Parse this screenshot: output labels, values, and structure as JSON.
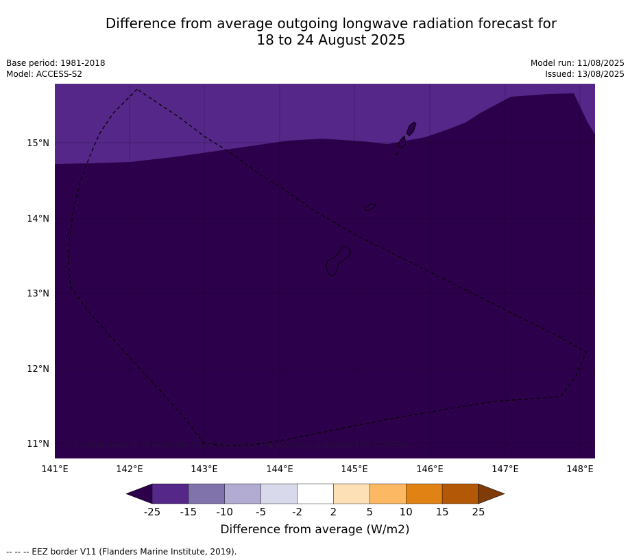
{
  "title_line1": "Difference from average outgoing longwave radiation forecast for",
  "title_line2": "18 to 24 August 2025",
  "base_period": "Base period: 1981-2018",
  "model": "Model: ACCESS-S2",
  "model_run": "Model run: 11/08/2025",
  "issued": "Issued: 13/08/2025",
  "copyright": "© Commonwealth of Australia 2025, Bureau of Meteorology, supported by COSPPac",
  "map": {
    "lon_labels": [
      "141°E",
      "142°E",
      "143°E",
      "144°E",
      "145°E",
      "146°E",
      "147°E",
      "148°E"
    ],
    "lat_labels": [
      "15°N",
      "14°N",
      "13°N",
      "12°N",
      "11°N"
    ],
    "colors": {
      "below_25": "#2d004b",
      "band_25_15": "#542788",
      "dashed_border": "#000000"
    }
  },
  "colorbar": {
    "label": "Difference from average (W/m2)",
    "ticks": [
      "-25",
      "-15",
      "-10",
      "-5",
      "-2",
      "2",
      "5",
      "10",
      "15",
      "25"
    ],
    "colors": [
      "#2d004b",
      "#542788",
      "#8073ac",
      "#b2abd2",
      "#d8daeb",
      "#ffffff",
      "#fee0b6",
      "#fdb863",
      "#e08214",
      "#b35806",
      "#7f3b08"
    ]
  },
  "footer": "-- -- -- EEZ border V11 (Flanders Marine Institute, 2019)."
}
